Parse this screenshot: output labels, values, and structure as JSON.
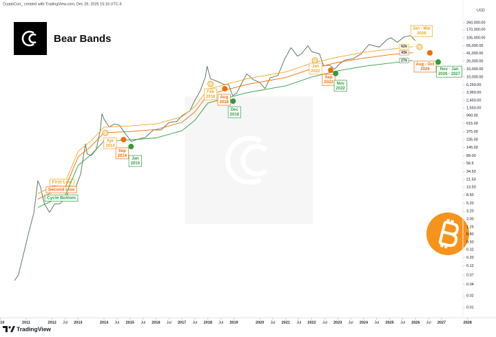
{
  "chart_data": {
    "type": "line",
    "header": "CryptoCon_ created with TradingView.com, Dec 29, 2025 15:16 UTC-5",
    "title": "Bear Bands",
    "y_axis_label": "USD",
    "brand": "TradingView",
    "log_y": true,
    "xlim": [
      2010,
      2028.3
    ],
    "xticks": [
      2010,
      2011,
      2012,
      {
        "value": 2012.5,
        "label": "Jul"
      },
      2013,
      2014,
      {
        "value": 2014.5,
        "label": "Jul"
      },
      2015,
      {
        "value": 2015.5,
        "label": "Jul"
      },
      2016,
      {
        "value": 2016.5,
        "label": "Jul"
      },
      2017,
      {
        "value": 2017.5,
        "label": "Jul"
      },
      2018,
      {
        "value": 2018.5,
        "label": "Jul"
      },
      2019,
      2020,
      {
        "value": 2020.5,
        "label": "Jul"
      },
      2021,
      {
        "value": 2021.5,
        "label": "Jul"
      },
      2022,
      {
        "value": 2022.5,
        "label": "Jul"
      },
      2023,
      {
        "value": 2023.5,
        "label": "Jul"
      },
      2024,
      {
        "value": 2024.5,
        "label": "Jul"
      },
      2025,
      {
        "value": 2025.5,
        "label": "Jul"
      },
      2026,
      {
        "value": 2026.5,
        "label": "Jul"
      },
      2027,
      2028
    ],
    "ylim": [
      0.0054,
      670000
    ],
    "yticks": [
      {
        "value": 260000,
        "label": "260,000.00"
      },
      {
        "value": 170000,
        "label": "170,000.00"
      },
      {
        "value": 105000,
        "label": "105,000.00"
      },
      {
        "value": 65000,
        "label": "65,000.00"
      },
      {
        "value": 41000,
        "label": "41,000.00"
      },
      {
        "value": 26000,
        "label": "26,000.00"
      },
      {
        "value": 16000,
        "label": "16,000.00"
      },
      {
        "value": 10000,
        "label": "10,000.00"
      },
      {
        "value": 6250,
        "label": "6,250.00"
      },
      {
        "value": 3950,
        "label": "3,950.00"
      },
      {
        "value": 2450,
        "label": "2,450.00"
      },
      {
        "value": 1550,
        "label": "1,550.00"
      },
      {
        "value": 990,
        "label": "990.00"
      },
      {
        "value": 615,
        "label": "615.00"
      },
      {
        "value": 375,
        "label": "375.00"
      },
      {
        "value": 235,
        "label": "235.00"
      },
      {
        "value": 145,
        "label": "145.00"
      },
      {
        "value": 89,
        "label": "89.00"
      },
      56.5,
      {
        "value": 34.5,
        "label": "34.50"
      },
      {
        "value": 21.5,
        "label": "21.50"
      },
      {
        "value": 13.5,
        "label": "13.50"
      },
      {
        "value": 8.5,
        "label": "8.50"
      },
      {
        "value": 5.2,
        "label": "5.20"
      },
      {
        "value": 3.2,
        "label": "3.20"
      },
      {
        "value": 2,
        "label": "2.00"
      },
      1.25,
      {
        "value": 0.8,
        "label": "0.80"
      },
      {
        "value": 0.5,
        "label": "0.50"
      },
      0.32,
      {
        "value": 0.2,
        "label": "0.20"
      },
      0.12,
      0.07,
      0.04,
      0.02,
      0.01
    ],
    "price": {
      "color": "#5f7a5f",
      "x": [
        2010.55,
        2010.7,
        2010.9,
        2011.1,
        2011.3,
        2011.45,
        2011.55,
        2011.7,
        2011.9,
        2012.1,
        2012.3,
        2012.5,
        2012.7,
        2012.9,
        2013.1,
        2013.28,
        2013.35,
        2013.5,
        2013.7,
        2013.85,
        2013.92,
        2014.0,
        2014.2,
        2014.4,
        2014.6,
        2014.8,
        2015.05,
        2015.3,
        2015.6,
        2015.9,
        2016.2,
        2016.5,
        2016.8,
        2017.0,
        2017.3,
        2017.5,
        2017.7,
        2017.9,
        2017.97,
        2018.1,
        2018.3,
        2018.6,
        2018.8,
        2018.95,
        2019.1,
        2019.35,
        2019.5,
        2019.75,
        2020.0,
        2020.2,
        2020.4,
        2020.7,
        2020.95,
        2021.2,
        2021.45,
        2021.6,
        2021.85,
        2022.0,
        2022.3,
        2022.45,
        2022.7,
        2022.88,
        2023.1,
        2023.3,
        2023.6,
        2023.9,
        2024.2,
        2024.6,
        2024.9,
        2025.05,
        2025.3,
        2025.55,
        2025.8,
        2025.99
      ],
      "values": [
        0.05,
        0.07,
        0.25,
        0.9,
        3,
        20,
        14,
        5,
        3,
        5,
        5,
        7,
        12,
        13,
        30,
        180,
        100,
        90,
        130,
        400,
        1100,
        800,
        500,
        600,
        550,
        350,
        210,
        240,
        270,
        420,
        420,
        650,
        700,
        980,
        1300,
        2500,
        4300,
        10000,
        19000,
        9000,
        8000,
        6500,
        6300,
        3300,
        3700,
        8000,
        12000,
        8500,
        7200,
        5000,
        9500,
        11000,
        29000,
        58000,
        35000,
        40000,
        65000,
        46000,
        40000,
        20000,
        20000,
        16000,
        23000,
        28000,
        30000,
        40000,
        70000,
        60000,
        95000,
        105000,
        80000,
        110000,
        120000,
        88000
      ]
    },
    "series": [
      {
        "name": "First Low",
        "color": "#f5a623",
        "end_label": "62k",
        "x": [
          2011.45,
          2012,
          2012.5,
          2013,
          2013.5,
          2014,
          2015,
          2016,
          2017,
          2017.5,
          2018,
          2019.5,
          2021,
          2022,
          2023,
          2024,
          2025,
          2025.9
        ],
        "values": [
          9.2,
          14,
          18,
          115,
          220,
          495,
          530,
          600,
          920,
          1700,
          4800,
          9000,
          13600,
          23000,
          33000,
          44000,
          53000,
          62000
        ]
      },
      {
        "name": "Second Low",
        "color": "#ef6c00",
        "end_label": "43k",
        "x": [
          2011.45,
          2012,
          2012.5,
          2013,
          2013.5,
          2014,
          2015,
          2016,
          2017,
          2017.5,
          2018,
          2019.5,
          2021,
          2022,
          2023,
          2024,
          2025,
          2025.9
        ],
        "values": [
          6.6,
          9.9,
          13,
          83,
          157,
          355,
          380,
          430,
          660,
          1240,
          3470,
          6400,
          9700,
          16500,
          24000,
          31000,
          38000,
          43000
        ]
      },
      {
        "name": "Cycle Bottom",
        "color": "#2e9e3e",
        "end_label": "27k",
        "x": [
          2011.45,
          2012,
          2012.5,
          2013,
          2013.5,
          2014,
          2015,
          2016,
          2017,
          2017.5,
          2018,
          2019.5,
          2021,
          2022,
          2023,
          2024,
          2025,
          2025.9
        ],
        "values": [
          4,
          6,
          8,
          50,
          95,
          215,
          230,
          260,
          400,
          750,
          2100,
          3900,
          5900,
          10000,
          14500,
          19000,
          23000,
          27000
        ]
      }
    ],
    "markers": [
      {
        "x": 2014.05,
        "y": 350,
        "color": "#f5a623",
        "filled": false,
        "text": [
          "Apr",
          "2014"
        ]
      },
      {
        "x": 2014.75,
        "y": 235,
        "color": "#ef6c00",
        "filled": true,
        "text": [
          "Sep",
          "2014"
        ]
      },
      {
        "x": 2015.04,
        "y": 155,
        "color": "#2e9e3e",
        "filled": true,
        "text": [
          "Jan",
          "2015"
        ]
      },
      {
        "x": 2018.1,
        "y": 6600,
        "color": "#f5a623",
        "filled": false,
        "text": [
          "Feb",
          "2018"
        ]
      },
      {
        "x": 2018.65,
        "y": 4950,
        "color": "#ef6c00",
        "filled": true,
        "text": [
          "Aug",
          "2018"
        ]
      },
      {
        "x": 2018.97,
        "y": 2350,
        "color": "#2e9e3e",
        "filled": true,
        "text": [
          "Dec",
          "2018"
        ]
      },
      {
        "x": 2022.12,
        "y": 27000,
        "color": "#f5a623",
        "filled": false,
        "text": [
          "Jan",
          "2022"
        ]
      },
      {
        "x": 2022.73,
        "y": 15000,
        "color": "#ef6c00",
        "filled": true,
        "text": [
          "Sep",
          "2022"
        ]
      },
      {
        "x": 2022.92,
        "y": 12400,
        "color": "#2e9e3e",
        "filled": true,
        "text": [
          "Nov",
          "2022"
        ]
      },
      {
        "x": 2026.15,
        "y": 61000,
        "color": "#f5a623",
        "filled": false,
        "text": [
          "Jan - Mar",
          "2026"
        ]
      },
      {
        "x": 2026.55,
        "y": 42500,
        "color": "#ef6c00",
        "filled": true,
        "text": [
          "Aug - Oct",
          "2026"
        ]
      },
      {
        "x": 2026.87,
        "y": 24600,
        "color": "#2e9e3e",
        "filled": true,
        "text": [
          "Nov - Jan",
          "2026 - 2027"
        ]
      }
    ]
  }
}
